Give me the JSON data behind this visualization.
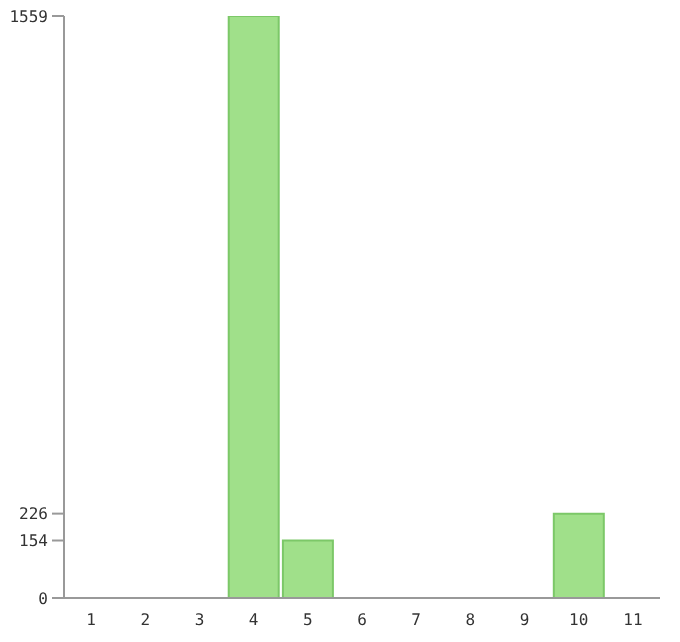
{
  "chart_data": {
    "type": "bar",
    "categories": [
      "1",
      "2",
      "3",
      "4",
      "5",
      "6",
      "7",
      "8",
      "9",
      "10",
      "11"
    ],
    "values": [
      0,
      0,
      0,
      1559,
      154,
      0,
      0,
      0,
      0,
      226,
      0
    ],
    "color": "#a0e08a",
    "ylim": [
      0,
      1559
    ],
    "yticks": [
      0,
      154,
      226,
      1559
    ]
  }
}
